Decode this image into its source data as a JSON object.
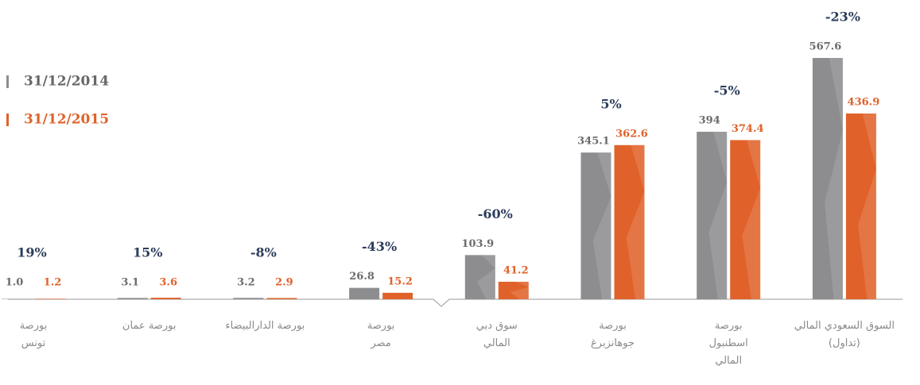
{
  "chart_data": {
    "type": "bar",
    "categories": [
      "بورصة\nتونس",
      "بورصة عمان",
      "بورصة الدارالبيضاء",
      "بورصة\nمصر",
      "سوق دبي\nالمالي",
      "بورصة\nجوهانزبرغ",
      "بورصة\nاسطنبول\nالمالي",
      "السوق السعودي المالي\n(تداول)"
    ],
    "series": [
      {
        "name": "31/12/2014",
        "color": "#8d8d90",
        "values": [
          1.0,
          3.1,
          3.2,
          26.8,
          103.9,
          345.1,
          394,
          567.6
        ],
        "value_labels": [
          "1.0",
          "3.1",
          "3.2",
          "26.8",
          "103.9",
          "345.1",
          "394",
          "567.6"
        ]
      },
      {
        "name": "31/12/2015",
        "color": "#e0622a",
        "values": [
          1.2,
          3.6,
          2.9,
          15.2,
          41.2,
          362.6,
          374.4,
          436.9
        ],
        "value_labels": [
          "1.2",
          "3.6",
          "2.9",
          "15.2",
          "41.2",
          "362.6",
          "374.4",
          "436.9"
        ]
      }
    ],
    "annotations": [
      "19%",
      "15%",
      "-8%",
      "-43%",
      "-60%",
      "5%",
      "-5%",
      "-23%"
    ],
    "legend": "top-left"
  }
}
